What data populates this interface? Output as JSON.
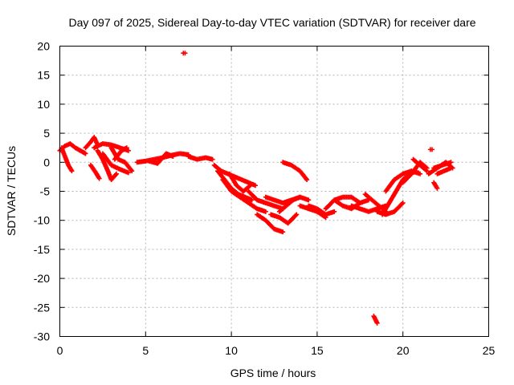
{
  "chart_data": {
    "type": "scatter",
    "title": "Day 097 of 2025, Sidereal Day-to-day VTEC variation (SDTVAR) for receiver dare",
    "xlabel": "GPS time / hours",
    "ylabel": "SDTVAR / TECUs",
    "xlim": [
      0,
      25
    ],
    "ylim": [
      -30,
      20
    ],
    "xticks": [
      0,
      5,
      10,
      15,
      20,
      25
    ],
    "yticks": [
      -30,
      -25,
      -20,
      -15,
      -10,
      -5,
      0,
      5,
      10,
      15,
      20
    ],
    "xtick_labels": [
      "0",
      "5",
      "10",
      "15",
      "20",
      "25"
    ],
    "ytick_labels": [
      "-30",
      "-25",
      "-20",
      "-15",
      "-10",
      "-5",
      "0",
      "5",
      "10",
      "15",
      "20"
    ],
    "grid": true,
    "marker": "+",
    "color": "#ff0000",
    "tracks": [
      {
        "x": [
          0.0,
          0.3,
          0.6,
          0.9,
          1.2,
          1.5
        ],
        "y": [
          2.0,
          2.8,
          3.2,
          2.5,
          2.0,
          1.5
        ]
      },
      {
        "x": [
          0.1,
          0.3,
          0.5,
          0.7
        ],
        "y": [
          2.5,
          1.0,
          -0.5,
          -1.5
        ]
      },
      {
        "x": [
          1.5,
          1.8,
          2.0,
          2.2
        ],
        "y": [
          2.5,
          3.5,
          4.3,
          3.0
        ]
      },
      {
        "x": [
          1.8,
          2.1,
          2.3
        ],
        "y": [
          -0.5,
          -1.8,
          -2.8
        ]
      },
      {
        "x": [
          2.0,
          2.5,
          3.0,
          3.5,
          4.0
        ],
        "y": [
          2.5,
          3.2,
          3.0,
          2.5,
          2.0
        ]
      },
      {
        "x": [
          2.2,
          2.5,
          2.8,
          3.0,
          3.3
        ],
        "y": [
          2.0,
          0.5,
          -1.5,
          -3.0,
          -2.0
        ]
      },
      {
        "x": [
          2.5,
          3.0,
          3.5,
          4.0
        ],
        "y": [
          1.5,
          -0.5,
          -1.2,
          -1.8
        ]
      },
      {
        "x": [
          3.0,
          3.4,
          3.8,
          4.2
        ],
        "y": [
          2.5,
          0.5,
          0.0,
          -1.5
        ]
      },
      {
        "x": [
          3.2,
          3.6,
          3.9
        ],
        "y": [
          0.5,
          2.0,
          2.5
        ]
      },
      {
        "x": [
          4.5,
          5.0,
          5.5,
          6.0,
          6.5,
          7.0,
          7.5
        ],
        "y": [
          0.0,
          0.2,
          0.5,
          0.8,
          1.2,
          1.5,
          1.3
        ]
      },
      {
        "x": [
          5.2,
          5.7,
          6.2,
          6.6
        ],
        "y": [
          0.2,
          -0.2,
          1.5,
          1.0
        ]
      },
      {
        "x": [
          7.5,
          8.0,
          8.5,
          8.9
        ],
        "y": [
          1.0,
          0.5,
          0.8,
          0.5
        ]
      },
      {
        "x": [
          7.2,
          7.3
        ],
        "y": [
          18.8,
          18.8
        ]
      },
      {
        "x": [
          9.0,
          9.4,
          9.8,
          10.2,
          10.6,
          11.0,
          11.4
        ],
        "y": [
          -0.5,
          -1.5,
          -2.0,
          -2.5,
          -3.0,
          -3.5,
          -4.0
        ]
      },
      {
        "x": [
          9.2,
          9.6,
          10.0,
          10.4,
          10.8,
          11.2
        ],
        "y": [
          -1.5,
          -3.0,
          -4.5,
          -5.5,
          -6.0,
          -6.5
        ]
      },
      {
        "x": [
          9.5,
          10.0,
          10.5,
          11.0,
          11.5,
          12.0
        ],
        "y": [
          -3.0,
          -5.0,
          -6.0,
          -7.0,
          -8.0,
          -8.5
        ]
      },
      {
        "x": [
          9.9,
          10.3,
          10.7,
          11.1
        ],
        "y": [
          -2.0,
          -4.0,
          -5.0,
          -4.0
        ]
      },
      {
        "x": [
          11.0,
          11.5,
          12.0,
          12.5,
          13.0
        ],
        "y": [
          -5.0,
          -6.5,
          -7.0,
          -7.5,
          -8.0
        ]
      },
      {
        "x": [
          11.5,
          12.0,
          12.5,
          13.0
        ],
        "y": [
          -9.0,
          -10.0,
          -11.5,
          -12.0
        ]
      },
      {
        "x": [
          12.0,
          12.5,
          13.0,
          13.5,
          14.0
        ],
        "y": [
          -6.0,
          -6.5,
          -7.0,
          -6.5,
          -6.0
        ]
      },
      {
        "x": [
          12.3,
          12.8,
          13.3,
          13.8
        ],
        "y": [
          -9.0,
          -9.5,
          -10.5,
          -9.0
        ]
      },
      {
        "x": [
          12.8,
          13.2,
          13.6,
          14.0,
          14.5
        ],
        "y": [
          -8.5,
          -7.5,
          -6.5,
          -6.0,
          -6.5
        ]
      },
      {
        "x": [
          13.0,
          13.5,
          14.0,
          14.4
        ],
        "y": [
          0.0,
          -0.5,
          -1.5,
          -3.0
        ]
      },
      {
        "x": [
          14.0,
          14.5,
          15.0,
          15.5
        ],
        "y": [
          -7.5,
          -8.0,
          -8.5,
          -9.5
        ]
      },
      {
        "x": [
          14.5,
          15.0,
          15.5,
          16.0
        ],
        "y": [
          -7.5,
          -8.0,
          -9.0,
          -8.5
        ]
      },
      {
        "x": [
          15.5,
          16.0,
          16.5,
          17.0,
          17.5
        ],
        "y": [
          -8.0,
          -6.5,
          -6.0,
          -6.0,
          -7.0
        ]
      },
      {
        "x": [
          16.0,
          16.5,
          17.0,
          17.5,
          18.0
        ],
        "y": [
          -6.5,
          -7.5,
          -8.0,
          -7.0,
          -6.5
        ]
      },
      {
        "x": [
          17.0,
          17.5,
          18.0,
          18.5,
          19.0
        ],
        "y": [
          -7.5,
          -8.0,
          -8.5,
          -8.0,
          -7.5
        ]
      },
      {
        "x": [
          17.8,
          18.2,
          18.6,
          19.0
        ],
        "y": [
          -5.5,
          -6.5,
          -7.5,
          -8.5
        ]
      },
      {
        "x": [
          18.3,
          18.5
        ],
        "y": [
          -26.5,
          -27.7
        ]
      },
      {
        "x": [
          18.5,
          19.0,
          19.5,
          20.0
        ],
        "y": [
          -8.5,
          -9.0,
          -8.5,
          -7.0
        ]
      },
      {
        "x": [
          18.8,
          19.2,
          19.6,
          20.0,
          20.4,
          20.8
        ],
        "y": [
          -9.0,
          -7.0,
          -5.0,
          -3.0,
          -2.0,
          -1.5
        ]
      },
      {
        "x": [
          19.0,
          19.5,
          20.0,
          20.5,
          21.0
        ],
        "y": [
          -5.0,
          -3.0,
          -2.0,
          -1.5,
          -2.0
        ]
      },
      {
        "x": [
          20.0,
          20.5,
          21.0,
          21.4
        ],
        "y": [
          -3.5,
          -2.0,
          0.0,
          -1.0
        ]
      },
      {
        "x": [
          20.6,
          21.0,
          21.4
        ],
        "y": [
          0.5,
          -0.5,
          -1.5
        ]
      },
      {
        "x": [
          21.6,
          21.7
        ],
        "y": [
          2.2,
          2.2
        ]
      },
      {
        "x": [
          21.8,
          22.0
        ],
        "y": [
          -3.5,
          -4.5
        ]
      },
      {
        "x": [
          21.5,
          22.0,
          22.5,
          22.9
        ],
        "y": [
          -2.0,
          -1.0,
          0.0,
          -1.0
        ]
      },
      {
        "x": [
          21.8,
          22.3,
          22.8
        ],
        "y": [
          -1.0,
          -0.5,
          0.0
        ]
      },
      {
        "x": [
          22.0,
          22.4,
          22.8
        ],
        "y": [
          -2.0,
          -1.5,
          -1.0
        ]
      }
    ]
  }
}
